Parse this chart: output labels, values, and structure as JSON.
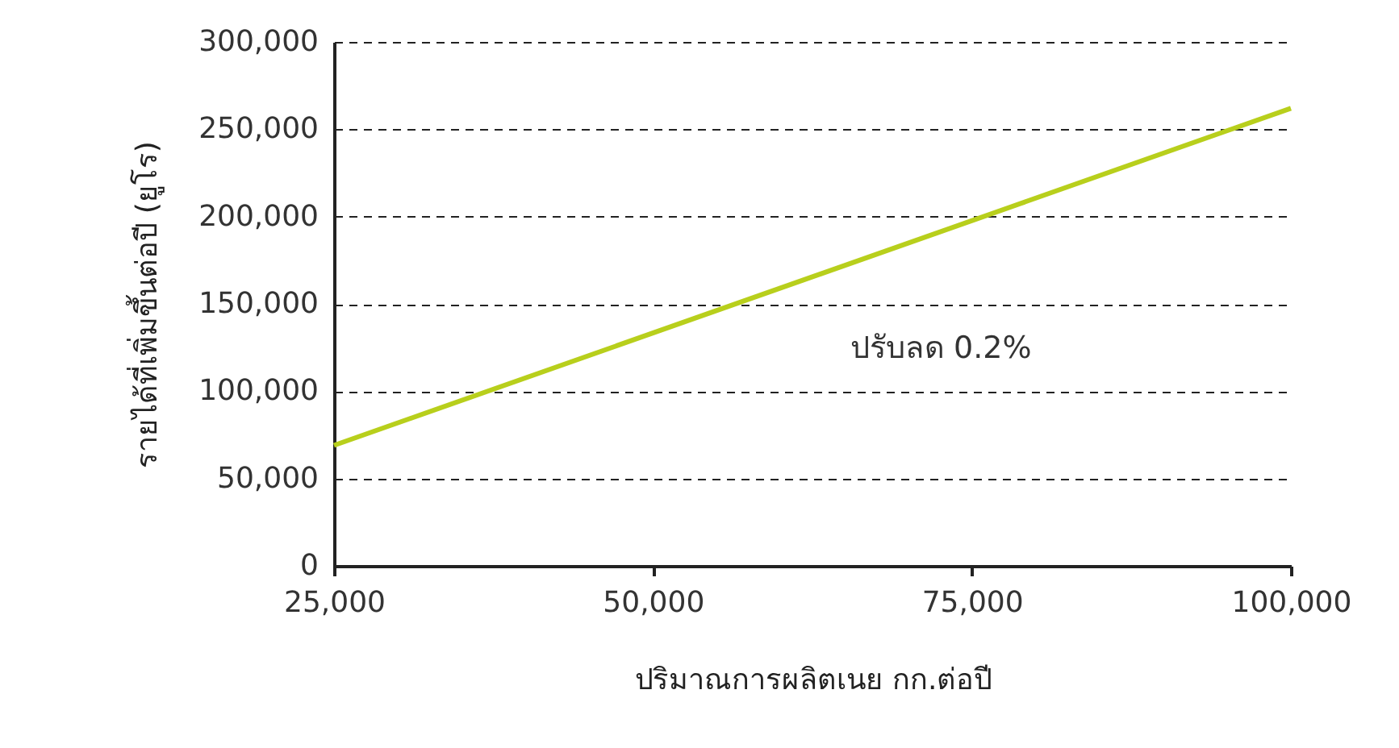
{
  "chart_data": {
    "type": "line",
    "xlabel": "ปริมาณการผลิตเนย กก.ต่อปี",
    "ylabel": "รายได้ที่เพิ่มขึ้นต่อปี (ยูโร)",
    "x": [
      25000,
      100000
    ],
    "series": [
      {
        "color": "#b8cf1c",
        "values": [
          69000,
          262000
        ]
      }
    ],
    "xlim": [
      25000,
      100000
    ],
    "xticks": [
      {
        "value": 25000,
        "label": "25,000"
      },
      {
        "value": 50000,
        "label": "50,000"
      },
      {
        "value": 75000,
        "label": "75,000"
      },
      {
        "value": 100000,
        "label": "100,000"
      }
    ],
    "ylim": [
      0,
      300000
    ],
    "yticks": [
      0,
      {
        "value": 50000,
        "label": "50,000"
      },
      {
        "value": 100000,
        "label": "100,000"
      },
      {
        "value": 150000,
        "label": "150,000"
      },
      {
        "value": 200000,
        "label": "200,000"
      },
      {
        "value": 250000,
        "label": "250,000"
      },
      {
        "value": 300000,
        "label": "300,000"
      }
    ],
    "grid": "y",
    "marker": "none",
    "line_style": "solid",
    "annotations": [
      "ปรับลด 0.2%"
    ]
  }
}
